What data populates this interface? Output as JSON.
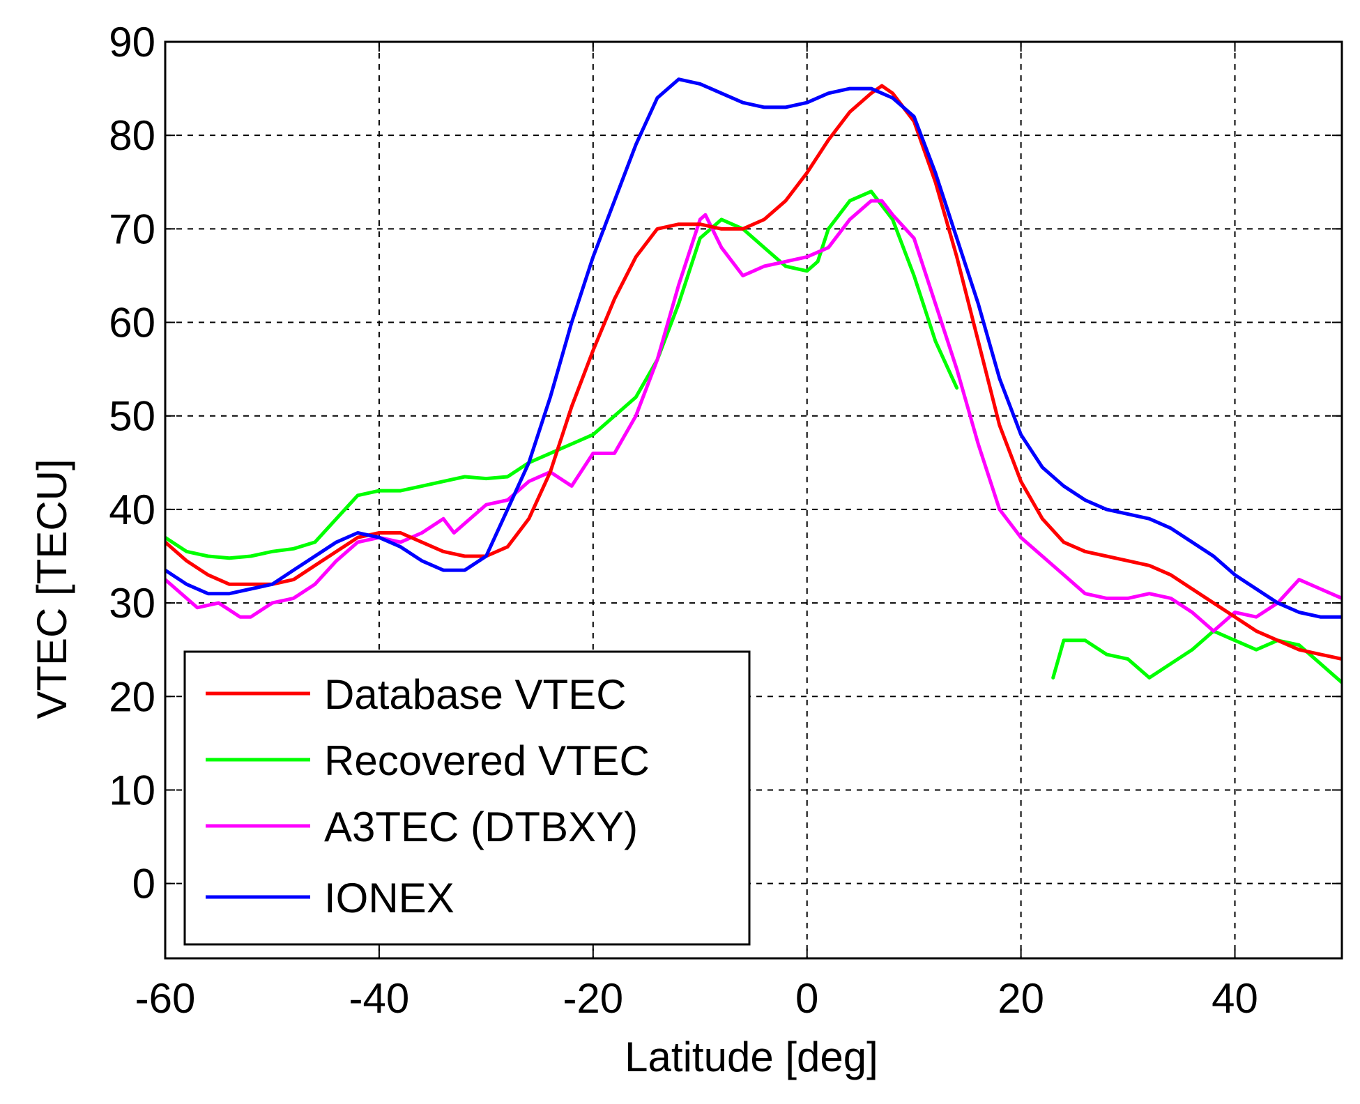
{
  "chart_data": {
    "type": "line",
    "title": "",
    "xlabel": "Latitude [deg]",
    "ylabel": "VTEC [TECU]",
    "xlim": [
      -60,
      50
    ],
    "ylim": [
      -8,
      90
    ],
    "xticks": [
      -60,
      -40,
      -20,
      0,
      20,
      40
    ],
    "yticks": [
      0,
      10,
      20,
      30,
      40,
      50,
      60,
      70,
      80,
      90
    ],
    "xtick_labels": [
      "-60",
      "-40",
      "-20",
      "0",
      "20",
      "40"
    ],
    "ytick_labels": [
      "0",
      "10",
      "20",
      "30",
      "40",
      "50",
      "60",
      "70",
      "80",
      "90"
    ],
    "grid": true,
    "legend_position": "bottom-left",
    "series": [
      {
        "name": "Database VTEC",
        "color": "#ff0000",
        "x": [
          -60,
          -58,
          -56,
          -54,
          -52,
          -50,
          -48,
          -46,
          -44,
          -42,
          -40,
          -38,
          -36,
          -34,
          -32,
          -30,
          -28,
          -26,
          -24,
          -22,
          -20,
          -18,
          -16,
          -14,
          -12,
          -10,
          -8,
          -6,
          -4,
          -2,
          0,
          2,
          4,
          6,
          7,
          8,
          10,
          12,
          14,
          16,
          18,
          20,
          22,
          24,
          26,
          28,
          30,
          32,
          34,
          36,
          38,
          40,
          42,
          44,
          46,
          48,
          50
        ],
        "values": [
          36.5,
          34.5,
          33,
          32,
          32,
          32,
          32.5,
          34,
          35.5,
          37,
          37.5,
          37.5,
          36.5,
          35.5,
          35,
          35,
          36,
          39,
          44,
          51,
          57,
          62.5,
          67,
          70,
          70.5,
          70.5,
          70,
          70,
          71,
          73,
          76,
          79.5,
          82.5,
          84.5,
          85.3,
          84.5,
          81.5,
          75,
          67,
          58,
          49,
          43,
          39,
          36.5,
          35.5,
          35,
          34.5,
          34,
          33,
          31.5,
          30,
          28.5,
          27,
          26,
          25,
          24.5,
          24
        ]
      },
      {
        "name": "Recovered VTEC",
        "color": "#00ff00",
        "segments": [
          {
            "x": [
              -60,
              -58,
              -56,
              -54,
              -52,
              -50,
              -48,
              -46,
              -44,
              -42,
              -40,
              -38,
              -36,
              -34,
              -32,
              -30,
              -28,
              -26,
              -24,
              -22,
              -20,
              -18,
              -16,
              -14,
              -12,
              -10,
              -8,
              -6,
              -4,
              -2,
              0,
              1,
              2,
              4,
              6,
              8,
              10,
              12,
              14
            ],
            "values": [
              37,
              35.5,
              35,
              34.8,
              35,
              35.5,
              35.8,
              36.5,
              39,
              41.5,
              42,
              42,
              42.5,
              43,
              43.5,
              43.3,
              43.5,
              45,
              46,
              47,
              48,
              50,
              52,
              56,
              62,
              69,
              71,
              70,
              68,
              66,
              65.5,
              66.5,
              70,
              73,
              74,
              71,
              65,
              58,
              53
            ]
          },
          {
            "x": [
              23,
              24,
              26,
              28,
              30,
              32,
              34,
              36,
              38,
              40,
              42,
              44,
              46,
              48,
              50
            ],
            "values": [
              22,
              26,
              26,
              24.5,
              24,
              22,
              23.5,
              25,
              27,
              26,
              25,
              26,
              25.5,
              23.5,
              21.5
            ]
          }
        ]
      },
      {
        "name": "A3TEC (DTBXY)",
        "color": "#ff00ff",
        "x": [
          -60,
          -58,
          -57,
          -55,
          -53,
          -52,
          -50,
          -48,
          -46,
          -44,
          -42,
          -40,
          -38,
          -36,
          -34,
          -33,
          -32,
          -30,
          -28,
          -26,
          -24,
          -22,
          -20,
          -18,
          -16,
          -14,
          -12,
          -10,
          -9.5,
          -8,
          -6,
          -5,
          -4,
          -2,
          0,
          2,
          4,
          6,
          7,
          8,
          10,
          12,
          14,
          16,
          18,
          20,
          22,
          24,
          26,
          28,
          30,
          32,
          34,
          36,
          38,
          40,
          42,
          44,
          46,
          48,
          50
        ],
        "values": [
          32.5,
          30.5,
          29.5,
          30,
          28.5,
          28.5,
          30,
          30.5,
          32,
          34.5,
          36.5,
          37,
          36.5,
          37.5,
          39,
          37.5,
          38.5,
          40.5,
          41,
          43,
          44,
          42.5,
          46,
          46,
          50,
          56,
          64,
          71,
          71.5,
          68,
          65,
          65.5,
          66,
          66.5,
          67,
          68,
          71,
          73,
          73,
          71.5,
          69,
          62,
          55,
          47,
          40,
          37,
          35,
          33,
          31,
          30.5,
          30.5,
          31,
          30.5,
          29,
          27,
          29,
          28.5,
          30,
          32.5,
          31.5,
          30.5
        ]
      },
      {
        "name": "IONEX",
        "color": "#0000ff",
        "x": [
          -60,
          -58,
          -56,
          -54,
          -52,
          -50,
          -48,
          -46,
          -44,
          -42,
          -40,
          -38,
          -36,
          -34,
          -32,
          -30,
          -28,
          -26,
          -24,
          -22,
          -20,
          -18,
          -16,
          -14,
          -12,
          -10,
          -8,
          -6,
          -4,
          -2,
          0,
          2,
          4,
          6,
          8,
          10,
          12,
          14,
          16,
          18,
          20,
          22,
          24,
          26,
          28,
          30,
          32,
          34,
          36,
          38,
          40,
          42,
          44,
          46,
          48,
          50
        ],
        "values": [
          33.5,
          32,
          31,
          31,
          31.5,
          32,
          33.5,
          35,
          36.5,
          37.5,
          37,
          36,
          34.5,
          33.5,
          33.5,
          35,
          40,
          45,
          52,
          60,
          67,
          73,
          79,
          84,
          86,
          85.5,
          84.5,
          83.5,
          83,
          83,
          83.5,
          84.5,
          85,
          85,
          84,
          82,
          76,
          69,
          62,
          54,
          48,
          44.5,
          42.5,
          41,
          40,
          39.5,
          39,
          38,
          36.5,
          35,
          33,
          31.5,
          30,
          29,
          28.5,
          28.5
        ]
      }
    ]
  }
}
